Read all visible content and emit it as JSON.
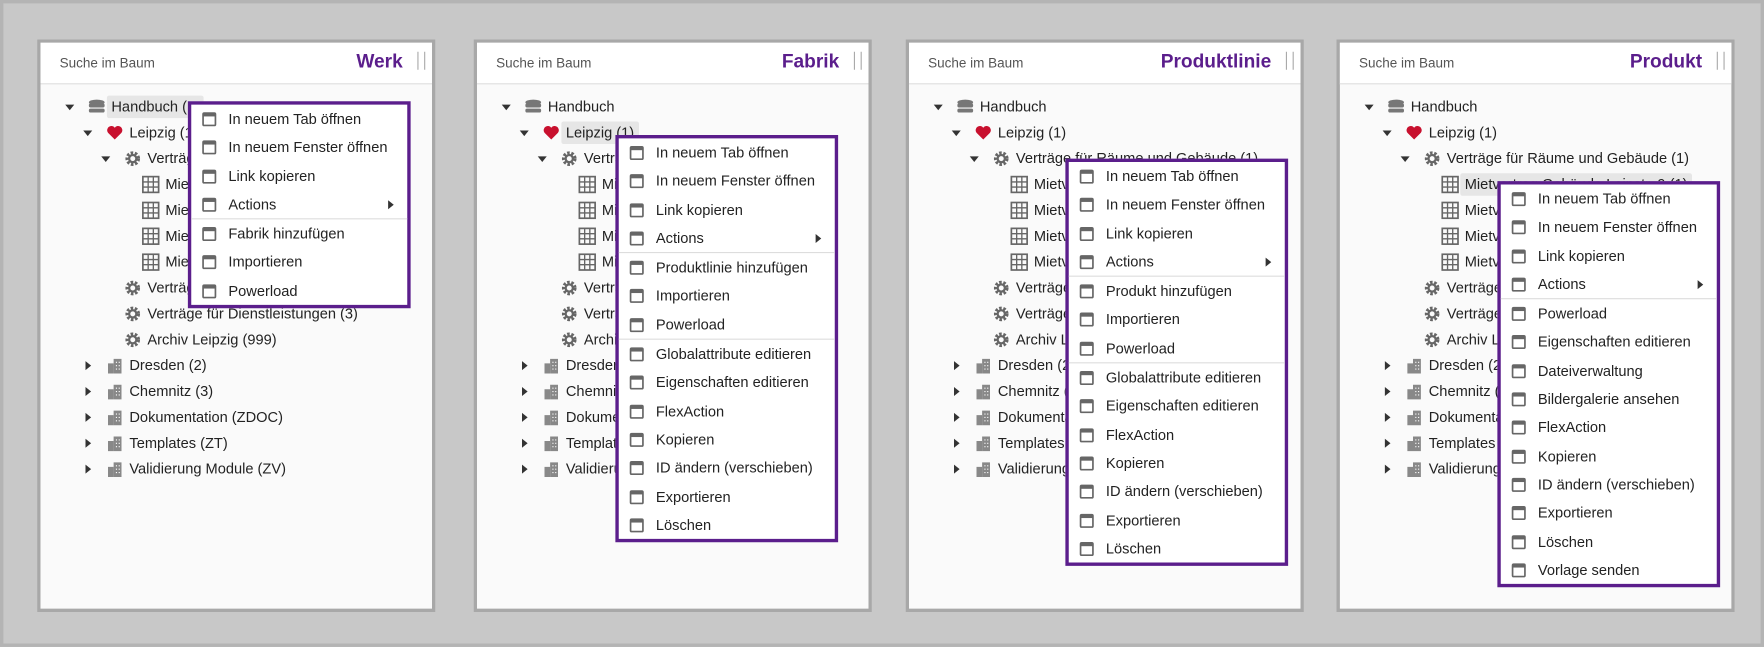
{
  "panels": [
    {
      "search": "Suche im Baum",
      "title": "Werk",
      "selected": 0,
      "tree": [
        {
          "text": "Handbuch (...",
          "level": 0,
          "icon": "db",
          "exp": "open"
        },
        {
          "text": "Leipzig (1)",
          "level": 1,
          "icon": "heart",
          "exp": "open"
        },
        {
          "text": "Verträge für Räume und Gebäude (1)",
          "level": 2,
          "icon": "gear",
          "exp": "open"
        },
        {
          "text": "Mietvertrag",
          "level": 3,
          "icon": "table"
        },
        {
          "text": "Mietvertrag",
          "level": 3,
          "icon": "table"
        },
        {
          "text": "Mietvertrag",
          "level": 3,
          "icon": "table"
        },
        {
          "text": "Mietvertrag",
          "level": 3,
          "icon": "table"
        },
        {
          "text": "Verträge",
          "level": 2,
          "icon": "gear"
        },
        {
          "text": "Verträge für Dienstleistungen (3)",
          "level": 2,
          "icon": "gear"
        },
        {
          "text": "Archiv Leipzig (999)",
          "level": 2,
          "icon": "gear"
        },
        {
          "text": "Dresden (2)",
          "level": 1,
          "icon": "building",
          "exp": "closed"
        },
        {
          "text": "Chemnitz (3)",
          "level": 1,
          "icon": "building",
          "exp": "closed"
        },
        {
          "text": "Dokumentation (ZDOC)",
          "level": 1,
          "icon": "building",
          "exp": "closed"
        },
        {
          "text": "Templates (ZT)",
          "level": 1,
          "icon": "building",
          "exp": "closed"
        },
        {
          "text": "Validierung Module (ZV)",
          "level": 1,
          "icon": "building",
          "exp": "closed"
        }
      ],
      "menu": [
        {
          "label": "In neuem Tab öffnen"
        },
        {
          "label": "In neuem Fenster öffnen"
        },
        {
          "label": "Link kopieren"
        },
        {
          "label": "Actions",
          "sub": true
        },
        {
          "label": "Fabrik hinzufügen",
          "sep": true
        },
        {
          "label": "Importieren"
        },
        {
          "label": "Powerload"
        }
      ]
    },
    {
      "search": "Suche im Baum",
      "title": "Fabrik",
      "selected": 1,
      "tree": [
        {
          "text": "Handbuch",
          "level": 0,
          "icon": "db",
          "exp": "open"
        },
        {
          "text": "Leipzig (1)",
          "level": 1,
          "icon": "heart",
          "exp": "open"
        },
        {
          "text": "Verträge",
          "level": 2,
          "icon": "gear",
          "exp": "open"
        },
        {
          "text": "Mietvertrag",
          "level": 3,
          "icon": "table"
        },
        {
          "text": "Mietvertrag",
          "level": 3,
          "icon": "table"
        },
        {
          "text": "Mietvertrag",
          "level": 3,
          "icon": "table"
        },
        {
          "text": "Mietvertrag",
          "level": 3,
          "icon": "table"
        },
        {
          "text": "Verträge",
          "level": 2,
          "icon": "gear"
        },
        {
          "text": "Verträge",
          "level": 2,
          "icon": "gear"
        },
        {
          "text": "Archiv",
          "level": 2,
          "icon": "gear"
        },
        {
          "text": "Dresden",
          "level": 1,
          "icon": "building",
          "exp": "closed"
        },
        {
          "text": "Chemnitz",
          "level": 1,
          "icon": "building",
          "exp": "closed"
        },
        {
          "text": "Dokumentation",
          "level": 1,
          "icon": "building",
          "exp": "closed"
        },
        {
          "text": "Templates",
          "level": 1,
          "icon": "building",
          "exp": "closed"
        },
        {
          "text": "Validierung",
          "level": 1,
          "icon": "building",
          "exp": "closed"
        }
      ],
      "menu": [
        {
          "label": "In neuem Tab öffnen"
        },
        {
          "label": "In neuem Fenster öffnen"
        },
        {
          "label": "Link kopieren"
        },
        {
          "label": "Actions",
          "sub": true
        },
        {
          "label": "Produktlinie hinzufügen",
          "sep": true
        },
        {
          "label": "Importieren"
        },
        {
          "label": "Powerload"
        },
        {
          "label": "Globalattribute editieren",
          "sep": true
        },
        {
          "label": "Eigenschaften editieren"
        },
        {
          "label": "FlexAction"
        },
        {
          "label": "Kopieren"
        },
        {
          "label": "ID ändern (verschieben)"
        },
        {
          "label": "Exportieren"
        },
        {
          "label": "Löschen"
        }
      ]
    },
    {
      "search": "Suche im Baum",
      "title": "Produktlinie",
      "selected": null,
      "tree": [
        {
          "text": "Handbuch",
          "level": 0,
          "icon": "db",
          "exp": "open"
        },
        {
          "text": "Leipzig (1)",
          "level": 1,
          "icon": "heart",
          "exp": "open"
        },
        {
          "text": "Verträge für Räume und Gebäude (1)",
          "level": 2,
          "icon": "gear",
          "exp": "open"
        },
        {
          "text": "Mietvertrag",
          "level": 3,
          "icon": "table"
        },
        {
          "text": "Mietvertrag",
          "level": 3,
          "icon": "table"
        },
        {
          "text": "Mietvertrag",
          "level": 3,
          "icon": "table"
        },
        {
          "text": "Mietvertrag",
          "level": 3,
          "icon": "table"
        },
        {
          "text": "Verträge",
          "level": 2,
          "icon": "gear"
        },
        {
          "text": "Verträge",
          "level": 2,
          "icon": "gear"
        },
        {
          "text": "Archiv Leipzig",
          "level": 2,
          "icon": "gear"
        },
        {
          "text": "Dresden (2)",
          "level": 1,
          "icon": "building",
          "exp": "closed"
        },
        {
          "text": "Chemnitz (3)",
          "level": 1,
          "icon": "building",
          "exp": "closed"
        },
        {
          "text": "Dokumentation",
          "level": 1,
          "icon": "building",
          "exp": "closed"
        },
        {
          "text": "Templates",
          "level": 1,
          "icon": "building",
          "exp": "closed"
        },
        {
          "text": "Validierung",
          "level": 1,
          "icon": "building",
          "exp": "closed"
        }
      ],
      "menu": [
        {
          "label": "In neuem Tab öffnen"
        },
        {
          "label": "In neuem Fenster öffnen"
        },
        {
          "label": "Link kopieren"
        },
        {
          "label": "Actions",
          "sub": true
        },
        {
          "label": "Produkt hinzufügen",
          "sep": true
        },
        {
          "label": "Importieren"
        },
        {
          "label": "Powerload"
        },
        {
          "label": "Globalattribute editieren",
          "sep": true
        },
        {
          "label": "Eigenschaften editieren"
        },
        {
          "label": "FlexAction"
        },
        {
          "label": "Kopieren"
        },
        {
          "label": "ID ändern (verschieben)"
        },
        {
          "label": "Exportieren"
        },
        {
          "label": "Löschen"
        }
      ]
    },
    {
      "search": "Suche im Baum",
      "title": "Produkt",
      "selected": 3,
      "tree": [
        {
          "text": "Handbuch",
          "level": 0,
          "icon": "db",
          "exp": "open"
        },
        {
          "text": "Leipzig (1)",
          "level": 1,
          "icon": "heart",
          "exp": "open"
        },
        {
          "text": "Verträge für Räume und Gebäude (1)",
          "level": 2,
          "icon": "gear",
          "exp": "open"
        },
        {
          "text": "Mietvertrag Gebäude Leipstr. 9 (1)",
          "level": 3,
          "icon": "table"
        },
        {
          "text": "Mietvertrag",
          "level": 3,
          "icon": "table"
        },
        {
          "text": "Mietvertrag",
          "level": 3,
          "icon": "table"
        },
        {
          "text": "Mietvertrag",
          "level": 3,
          "icon": "table"
        },
        {
          "text": "Verträge",
          "level": 2,
          "icon": "gear"
        },
        {
          "text": "Verträge",
          "level": 2,
          "icon": "gear"
        },
        {
          "text": "Archiv L",
          "level": 2,
          "icon": "gear"
        },
        {
          "text": "Dresden (2)",
          "level": 1,
          "icon": "building",
          "exp": "closed"
        },
        {
          "text": "Chemnitz (3)",
          "level": 1,
          "icon": "building",
          "exp": "closed"
        },
        {
          "text": "Dokumentation",
          "level": 1,
          "icon": "building",
          "exp": "closed"
        },
        {
          "text": "Templates",
          "level": 1,
          "icon": "building",
          "exp": "closed"
        },
        {
          "text": "Validierung",
          "level": 1,
          "icon": "building",
          "exp": "closed"
        }
      ],
      "menu": [
        {
          "label": "In neuem Tab öffnen"
        },
        {
          "label": "In neuem Fenster öffnen"
        },
        {
          "label": "Link kopieren"
        },
        {
          "label": "Actions",
          "sub": true
        },
        {
          "label": "Powerload",
          "sep": true
        },
        {
          "label": "Eigenschaften editieren"
        },
        {
          "label": "Dateiverwaltung"
        },
        {
          "label": "Bildergalerie ansehen"
        },
        {
          "label": "FlexAction"
        },
        {
          "label": "Kopieren"
        },
        {
          "label": "ID ändern (verschieben)"
        },
        {
          "label": "Exportieren"
        },
        {
          "label": "Löschen"
        },
        {
          "label": "Vorlage senden"
        }
      ]
    }
  ]
}
